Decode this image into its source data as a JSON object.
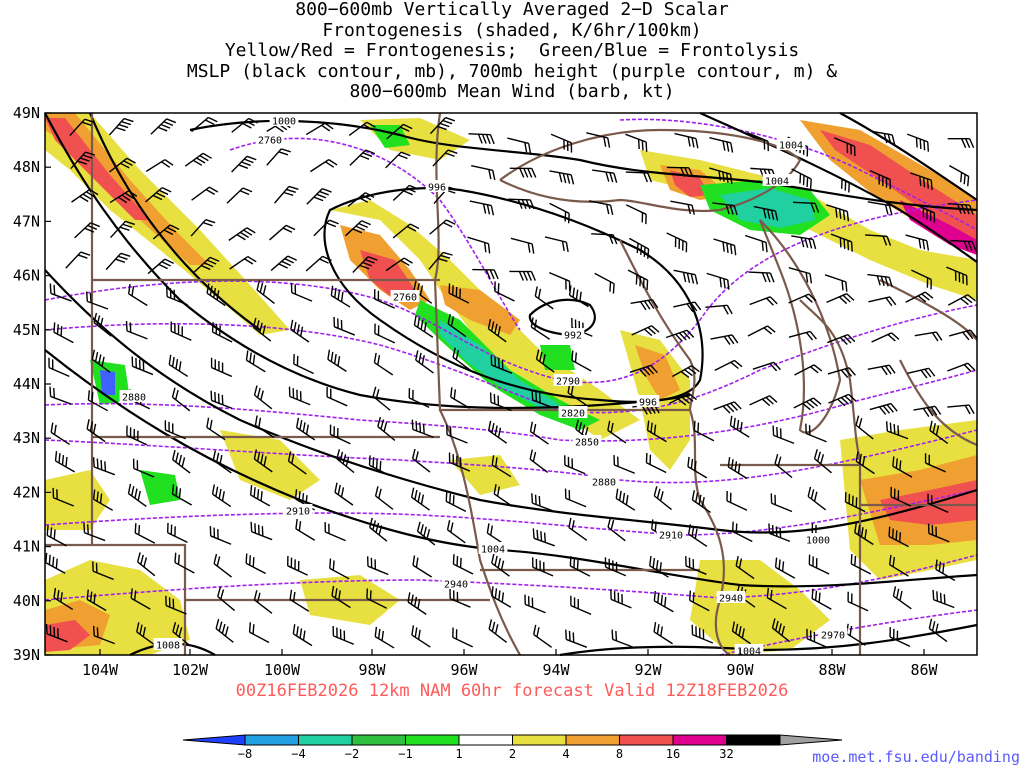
{
  "title": {
    "lines": [
      "800−600mb Vertically Averaged 2−D Scalar",
      "Frontogenesis (shaded, K/6hr/100km)",
      "Yellow/Red = Frontogenesis;  Green/Blue = Frontolysis",
      "MSLP (black contour, mb), 700mb height (purple contour, m) &",
      "800−600mb Mean Wind (barb, kt)"
    ]
  },
  "map": {
    "lat_labels": [
      "49N",
      "48N",
      "47N",
      "46N",
      "45N",
      "44N",
      "43N",
      "42N",
      "41N",
      "40N",
      "39N"
    ],
    "lon_labels": [
      "104W",
      "102W",
      "100W",
      "98W",
      "96W",
      "94W",
      "92W",
      "90W",
      "88W",
      "86W"
    ],
    "mslp_labels": [
      "1000",
      "996",
      "992",
      "996",
      "1004",
      "1004",
      "1000",
      "1004",
      "1008",
      "1004"
    ],
    "height_labels": [
      "2760",
      "2760",
      "2790",
      "2820",
      "2850",
      "2880",
      "2880",
      "2910",
      "2910",
      "2940",
      "2940",
      "2970"
    ],
    "colors": {
      "mslp": "#000000",
      "height": "#a020f0",
      "state_border": "#7a5a4a",
      "frontogenesis_weak": "#e8e040",
      "frontogenesis_mod": "#f0a030",
      "frontogenesis_strong": "#f05050",
      "frontolysis_weak": "#20e020",
      "frontolysis_mod": "#20d0a0",
      "frontolysis_strong": "#4060ff"
    }
  },
  "valid": "00Z16FEB2026 12km NAM 60hr forecast Valid 12Z18FEB2026",
  "colorbar": {
    "labels": [
      "−8",
      "−4",
      "−2",
      "−1",
      "1",
      "2",
      "4",
      "8",
      "16",
      "32"
    ],
    "colors": [
      "#2040ff",
      "#20a0e0",
      "#20d0a0",
      "#30c040",
      "#20e020",
      "#ffffff",
      "#e8e040",
      "#f0a030",
      "#f05050",
      "#e00090",
      "#000000",
      "#a0a0a0"
    ]
  },
  "credit": "moe.met.fsu.edu/banding"
}
